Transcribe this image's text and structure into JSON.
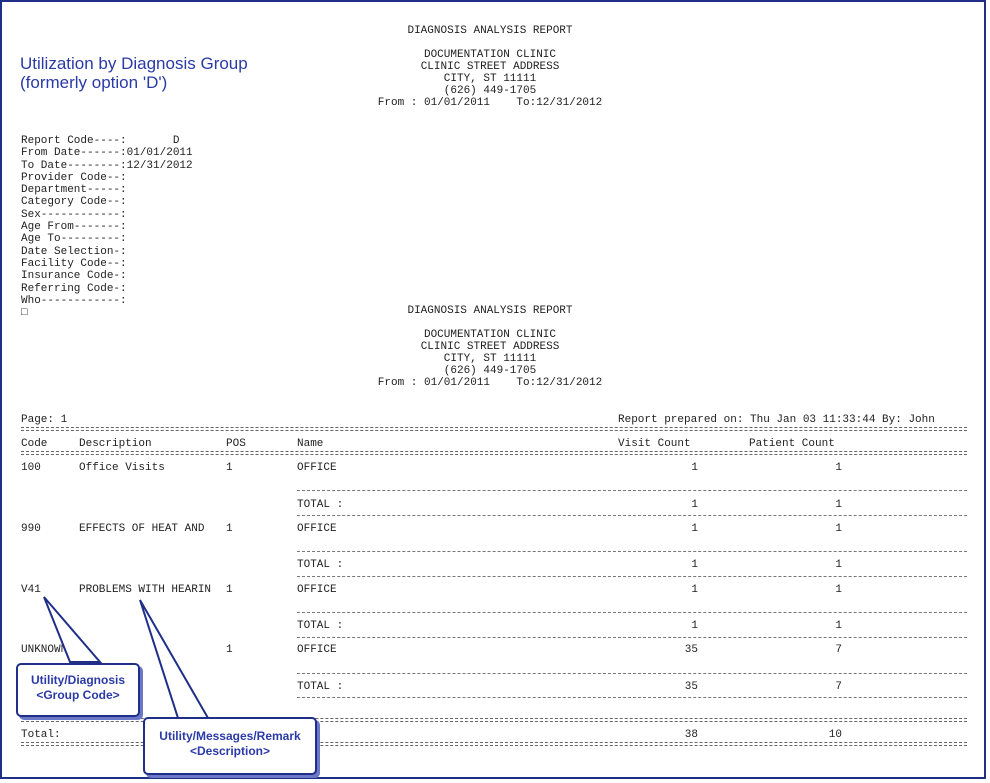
{
  "caption": {
    "line1": "Utilization by Diagnosis Group",
    "line2": "(formerly option 'D')"
  },
  "header": {
    "title": "DIAGNOSIS ANALYSIS REPORT",
    "clinic": "DOCUMENTATION CLINIC",
    "address": "CLINIC STREET ADDRESS",
    "city": "CITY, ST 11111",
    "phone": "(626) 449-1705",
    "range": "From : 01/01/2011    To:12/31/2012"
  },
  "params": [
    "Report Code----:       D",
    "From Date------:01/01/2011",
    "To Date--------:12/31/2012",
    "Provider Code--:",
    "Department-----:",
    "Category Code--:",
    "Sex------------:",
    "Age From-------:",
    "Age To---------:",
    "Date Selection-:",
    "Facility Code--:",
    "Insurance Code-:",
    "Referring Code-:",
    "Who------------:",
    "□"
  ],
  "page_label": "Page: 1",
  "prepared": "Report prepared on: Thu Jan 03 11:33:44 By: John",
  "columns": {
    "code": "Code",
    "description": "Description",
    "pos": "POS",
    "name": "Name",
    "visit_count": "Visit Count",
    "patient_count": "Patient Count"
  },
  "rows": [
    {
      "code": "100",
      "description": "Office Visits",
      "pos": "1",
      "name": "OFFICE",
      "visits": "1",
      "patients": "1",
      "total_label": "TOTAL :",
      "total_visits": "1",
      "total_patients": "1"
    },
    {
      "code": "990",
      "description": "EFFECTS OF HEAT AND",
      "pos": "1",
      "name": "OFFICE",
      "visits": "1",
      "patients": "1",
      "total_label": "TOTAL :",
      "total_visits": "1",
      "total_patients": "1"
    },
    {
      "code": "V41",
      "description": "PROBLEMS WITH HEARIN",
      "pos": "1",
      "name": "OFFICE",
      "visits": "1",
      "patients": "1",
      "total_label": "TOTAL :",
      "total_visits": "1",
      "total_patients": "1"
    },
    {
      "code": "UNKNOWN",
      "description": "",
      "pos": "1",
      "name": "OFFICE",
      "visits": "35",
      "patients": "7",
      "total_label": "TOTAL :",
      "total_visits": "35",
      "total_patients": "7"
    }
  ],
  "grand_total": {
    "label": "Total:",
    "visits": "38",
    "patients": "10"
  },
  "callouts": {
    "group_code": {
      "line1": "Utility/Diagnosis",
      "line2": "<Group Code>"
    },
    "description": {
      "line1": "Utility/Messages/Remark",
      "line2": "<Description>"
    }
  }
}
